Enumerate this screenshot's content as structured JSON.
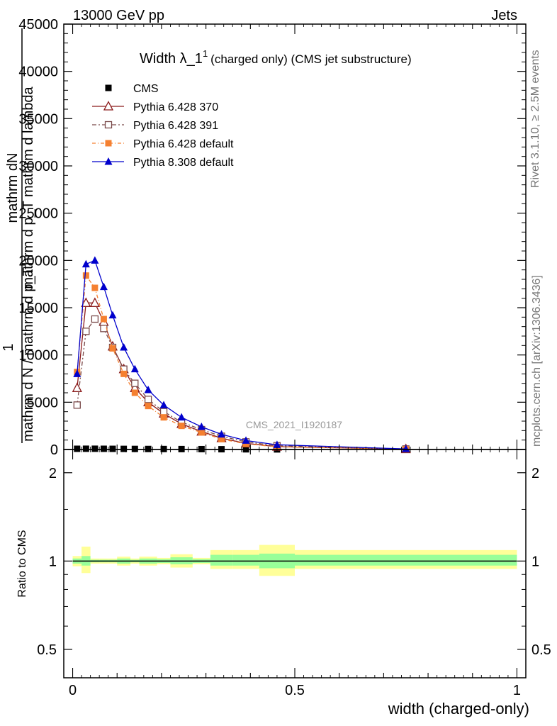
{
  "header": {
    "left": "13000 GeV pp",
    "right": "Jets"
  },
  "side_labels": {
    "rivet": "Rivet 3.1.10, ≥ 2.5M events",
    "mcplots": "mcplots.cern.ch [arXiv:1306.3436]"
  },
  "watermark": "CMS_2021_I1920187",
  "colors": {
    "pythia6_370": "#8b1a1a",
    "pythia6_391": "#7a4a4a",
    "pythia6_default": "#f58030",
    "pythia8_default": "#0000cc",
    "cms": "#000000",
    "band_outer": "#ffff99",
    "band_inner": "#99ff99"
  },
  "chart_data": [
    {
      "type": "line",
      "title_main": "Width λ_1",
      "title_sup": "1",
      "title_rest": "(charged only) (CMS jet substructure)",
      "ylabel_line1": "mathrm dN",
      "ylabel_line2": "mathrm d p_T mathrm d lambda",
      "ylabel_frac_num": "1",
      "ylabel_frac_den": "mathrm d N / mathrm d p_T",
      "xlim": [
        -0.02,
        1.02
      ],
      "ylim": [
        0,
        45000
      ],
      "y_ticks": [
        0,
        5000,
        10000,
        15000,
        20000,
        25000,
        30000,
        35000,
        40000,
        45000
      ],
      "y_tick_labels": [
        "0",
        "5000",
        "10000",
        "15000",
        "20000",
        "25000",
        "30000",
        "35000",
        "40000",
        "45000"
      ],
      "grid": false,
      "legend_position": "top-left",
      "x": [
        0.01,
        0.03,
        0.05,
        0.07,
        0.09,
        0.115,
        0.14,
        0.17,
        0.205,
        0.245,
        0.29,
        0.335,
        0.39,
        0.46,
        0.75
      ],
      "series": [
        {
          "name": "CMS",
          "marker": "square",
          "values": [
            75,
            80,
            80,
            75,
            70,
            65,
            60,
            55,
            50,
            45,
            40,
            30,
            20,
            10,
            0
          ]
        },
        {
          "name": "Pythia 6.428 370",
          "marker": "triangle-open",
          "dash": "",
          "values": [
            6500,
            15500,
            15500,
            13500,
            10900,
            8500,
            6500,
            5000,
            3800,
            2700,
            1900,
            1200,
            650,
            300,
            40
          ]
        },
        {
          "name": "Pythia 6.428 391",
          "marker": "square-open",
          "dash": "6,3,2,3",
          "values": [
            4700,
            12500,
            13800,
            12800,
            10800,
            8500,
            7000,
            5300,
            4000,
            2900,
            2100,
            1400,
            800,
            400,
            50
          ]
        },
        {
          "name": "Pythia 6.428 default",
          "marker": "square",
          "dash": "5,3,1,3",
          "values": [
            8200,
            18400,
            17100,
            13800,
            10700,
            8000,
            6000,
            4600,
            3400,
            2500,
            1800,
            1100,
            600,
            280,
            35
          ]
        },
        {
          "name": "Pythia 8.308 default",
          "marker": "triangle",
          "dash": "",
          "values": [
            8000,
            19600,
            20000,
            17200,
            14200,
            10800,
            8500,
            6300,
            4700,
            3400,
            2400,
            1600,
            950,
            500,
            60
          ]
        }
      ]
    },
    {
      "type": "area",
      "ylabel": "Ratio to CMS",
      "xlabel": "width (charged-only)",
      "xlim": [
        -0.02,
        1.02
      ],
      "ylim": [
        0.4,
        2.4
      ],
      "log_y": true,
      "y_ticks": [
        0.5,
        1,
        2
      ],
      "y_tick_labels": [
        "0.5",
        "1",
        "2"
      ],
      "x_ticks": [
        0,
        0.5,
        1
      ],
      "x_tick_labels": [
        "0",
        "0.5",
        "1"
      ],
      "bin_edges": [
        0,
        0.02,
        0.04,
        0.06,
        0.08,
        0.1,
        0.13,
        0.15,
        0.19,
        0.22,
        0.27,
        0.31,
        0.36,
        0.42,
        0.5,
        1.0
      ],
      "band_outer": [
        [
          0.96,
          1.04
        ],
        [
          0.91,
          1.12
        ],
        [
          0.98,
          1.02
        ],
        [
          0.98,
          1.02
        ],
        [
          0.98,
          1.02
        ],
        [
          0.965,
          1.035
        ],
        [
          0.98,
          1.02
        ],
        [
          0.965,
          1.035
        ],
        [
          0.975,
          1.025
        ],
        [
          0.95,
          1.055
        ],
        [
          0.975,
          1.025
        ],
        [
          0.94,
          1.09
        ],
        [
          0.94,
          1.09
        ],
        [
          0.89,
          1.135
        ],
        [
          0.94,
          1.09
        ]
      ],
      "band_inner": [
        [
          0.98,
          1.02
        ],
        [
          0.965,
          1.04
        ],
        [
          0.99,
          1.01
        ],
        [
          0.99,
          1.01
        ],
        [
          0.99,
          1.01
        ],
        [
          0.98,
          1.02
        ],
        [
          0.99,
          1.01
        ],
        [
          0.98,
          1.02
        ],
        [
          0.985,
          1.015
        ],
        [
          0.975,
          1.03
        ],
        [
          0.985,
          1.015
        ],
        [
          0.965,
          1.05
        ],
        [
          0.965,
          1.05
        ],
        [
          0.945,
          1.06
        ],
        [
          0.965,
          1.05
        ]
      ]
    }
  ]
}
